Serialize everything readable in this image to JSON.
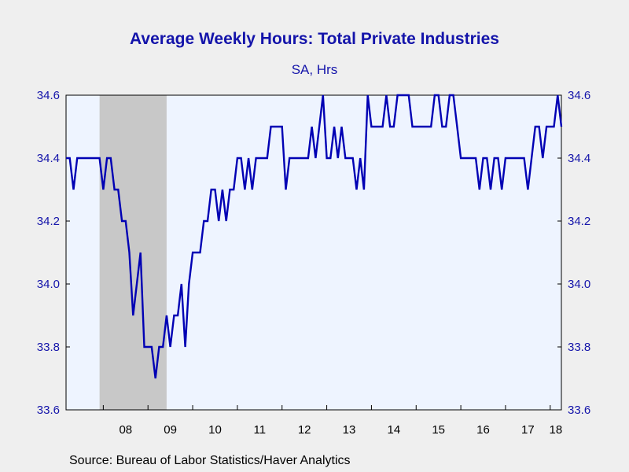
{
  "chart_data": {
    "type": "line",
    "title": "Average Weekly Hours: Total Private Industries",
    "subtitle": "SA, Hrs",
    "source": "Source:  Bureau of Labor Statistics/Haver Analytics",
    "ylim": [
      33.6,
      34.6
    ],
    "y_ticks": [
      "33.6",
      "33.8",
      "34.0",
      "34.2",
      "34.4",
      "34.6"
    ],
    "x_range": [
      "2007-03",
      "2018-04"
    ],
    "x_tick_labels": [
      "08",
      "09",
      "10",
      "11",
      "12",
      "13",
      "14",
      "15",
      "16",
      "17",
      "18"
    ],
    "recession_shading": [
      "2007-12",
      "2009-06"
    ],
    "grid": false,
    "colors": {
      "line": "#0000b4",
      "plot_bg": "#eef4ff",
      "recession": "#c8c8c8",
      "axis_text": "#1414aa"
    },
    "series": [
      {
        "values": [
          {
            "x": "2007-03",
            "y": 34.4
          },
          {
            "x": "2007-04",
            "y": 34.4
          },
          {
            "x": "2007-05",
            "y": 34.3
          },
          {
            "x": "2007-06",
            "y": 34.4
          },
          {
            "x": "2007-07",
            "y": 34.4
          },
          {
            "x": "2007-08",
            "y": 34.4
          },
          {
            "x": "2007-09",
            "y": 34.4
          },
          {
            "x": "2007-10",
            "y": 34.4
          },
          {
            "x": "2007-11",
            "y": 34.4
          },
          {
            "x": "2007-12",
            "y": 34.4
          },
          {
            "x": "2008-01",
            "y": 34.3
          },
          {
            "x": "2008-02",
            "y": 34.4
          },
          {
            "x": "2008-03",
            "y": 34.4
          },
          {
            "x": "2008-04",
            "y": 34.3
          },
          {
            "x": "2008-05",
            "y": 34.3
          },
          {
            "x": "2008-06",
            "y": 34.2
          },
          {
            "x": "2008-07",
            "y": 34.2
          },
          {
            "x": "2008-08",
            "y": 34.1
          },
          {
            "x": "2008-09",
            "y": 33.9
          },
          {
            "x": "2008-10",
            "y": 34.0
          },
          {
            "x": "2008-11",
            "y": 34.1
          },
          {
            "x": "2008-12",
            "y": 33.8
          },
          {
            "x": "2009-01",
            "y": 33.8
          },
          {
            "x": "2009-02",
            "y": 33.8
          },
          {
            "x": "2009-03",
            "y": 33.7
          },
          {
            "x": "2009-04",
            "y": 33.8
          },
          {
            "x": "2009-05",
            "y": 33.8
          },
          {
            "x": "2009-06",
            "y": 33.9
          },
          {
            "x": "2009-07",
            "y": 33.8
          },
          {
            "x": "2009-08",
            "y": 33.9
          },
          {
            "x": "2009-09",
            "y": 33.9
          },
          {
            "x": "2009-10",
            "y": 34.0
          },
          {
            "x": "2009-11",
            "y": 33.8
          },
          {
            "x": "2009-12",
            "y": 34.0
          },
          {
            "x": "2010-01",
            "y": 34.1
          },
          {
            "x": "2010-02",
            "y": 34.1
          },
          {
            "x": "2010-03",
            "y": 34.1
          },
          {
            "x": "2010-04",
            "y": 34.2
          },
          {
            "x": "2010-05",
            "y": 34.2
          },
          {
            "x": "2010-06",
            "y": 34.3
          },
          {
            "x": "2010-07",
            "y": 34.3
          },
          {
            "x": "2010-08",
            "y": 34.2
          },
          {
            "x": "2010-09",
            "y": 34.3
          },
          {
            "x": "2010-10",
            "y": 34.2
          },
          {
            "x": "2010-11",
            "y": 34.3
          },
          {
            "x": "2010-12",
            "y": 34.3
          },
          {
            "x": "2011-01",
            "y": 34.4
          },
          {
            "x": "2011-02",
            "y": 34.4
          },
          {
            "x": "2011-03",
            "y": 34.3
          },
          {
            "x": "2011-04",
            "y": 34.4
          },
          {
            "x": "2011-05",
            "y": 34.3
          },
          {
            "x": "2011-06",
            "y": 34.4
          },
          {
            "x": "2011-07",
            "y": 34.4
          },
          {
            "x": "2011-08",
            "y": 34.4
          },
          {
            "x": "2011-09",
            "y": 34.4
          },
          {
            "x": "2011-10",
            "y": 34.5
          },
          {
            "x": "2011-11",
            "y": 34.5
          },
          {
            "x": "2011-12",
            "y": 34.5
          },
          {
            "x": "2012-01",
            "y": 34.5
          },
          {
            "x": "2012-02",
            "y": 34.3
          },
          {
            "x": "2012-03",
            "y": 34.4
          },
          {
            "x": "2012-04",
            "y": 34.4
          },
          {
            "x": "2012-05",
            "y": 34.4
          },
          {
            "x": "2012-06",
            "y": 34.4
          },
          {
            "x": "2012-07",
            "y": 34.4
          },
          {
            "x": "2012-08",
            "y": 34.4
          },
          {
            "x": "2012-09",
            "y": 34.5
          },
          {
            "x": "2012-10",
            "y": 34.4
          },
          {
            "x": "2012-11",
            "y": 34.5
          },
          {
            "x": "2012-12",
            "y": 34.6
          },
          {
            "x": "2013-01",
            "y": 34.4
          },
          {
            "x": "2013-02",
            "y": 34.4
          },
          {
            "x": "2013-03",
            "y": 34.5
          },
          {
            "x": "2013-04",
            "y": 34.4
          },
          {
            "x": "2013-05",
            "y": 34.5
          },
          {
            "x": "2013-06",
            "y": 34.4
          },
          {
            "x": "2013-07",
            "y": 34.4
          },
          {
            "x": "2013-08",
            "y": 34.4
          },
          {
            "x": "2013-09",
            "y": 34.3
          },
          {
            "x": "2013-10",
            "y": 34.4
          },
          {
            "x": "2013-11",
            "y": 34.3
          },
          {
            "x": "2013-12",
            "y": 34.6
          },
          {
            "x": "2014-01",
            "y": 34.5
          },
          {
            "x": "2014-02",
            "y": 34.5
          },
          {
            "x": "2014-03",
            "y": 34.5
          },
          {
            "x": "2014-04",
            "y": 34.5
          },
          {
            "x": "2014-05",
            "y": 34.6
          },
          {
            "x": "2014-06",
            "y": 34.5
          },
          {
            "x": "2014-07",
            "y": 34.5
          },
          {
            "x": "2014-08",
            "y": 34.6
          },
          {
            "x": "2014-09",
            "y": 34.6
          },
          {
            "x": "2014-10",
            "y": 34.6
          },
          {
            "x": "2014-11",
            "y": 34.6
          },
          {
            "x": "2014-12",
            "y": 34.5
          },
          {
            "x": "2015-01",
            "y": 34.5
          },
          {
            "x": "2015-02",
            "y": 34.5
          },
          {
            "x": "2015-03",
            "y": 34.5
          },
          {
            "x": "2015-04",
            "y": 34.5
          },
          {
            "x": "2015-05",
            "y": 34.5
          },
          {
            "x": "2015-06",
            "y": 34.6
          },
          {
            "x": "2015-07",
            "y": 34.6
          },
          {
            "x": "2015-08",
            "y": 34.5
          },
          {
            "x": "2015-09",
            "y": 34.5
          },
          {
            "x": "2015-10",
            "y": 34.6
          },
          {
            "x": "2015-11",
            "y": 34.6
          },
          {
            "x": "2015-12",
            "y": 34.5
          },
          {
            "x": "2016-01",
            "y": 34.4
          },
          {
            "x": "2016-02",
            "y": 34.4
          },
          {
            "x": "2016-03",
            "y": 34.4
          },
          {
            "x": "2016-04",
            "y": 34.4
          },
          {
            "x": "2016-05",
            "y": 34.4
          },
          {
            "x": "2016-06",
            "y": 34.3
          },
          {
            "x": "2016-07",
            "y": 34.4
          },
          {
            "x": "2016-08",
            "y": 34.4
          },
          {
            "x": "2016-09",
            "y": 34.3
          },
          {
            "x": "2016-10",
            "y": 34.4
          },
          {
            "x": "2016-11",
            "y": 34.4
          },
          {
            "x": "2016-12",
            "y": 34.3
          },
          {
            "x": "2017-01",
            "y": 34.4
          },
          {
            "x": "2017-02",
            "y": 34.4
          },
          {
            "x": "2017-03",
            "y": 34.4
          },
          {
            "x": "2017-04",
            "y": 34.4
          },
          {
            "x": "2017-05",
            "y": 34.4
          },
          {
            "x": "2017-06",
            "y": 34.4
          },
          {
            "x": "2017-07",
            "y": 34.3
          },
          {
            "x": "2017-08",
            "y": 34.4
          },
          {
            "x": "2017-09",
            "y": 34.5
          },
          {
            "x": "2017-10",
            "y": 34.5
          },
          {
            "x": "2017-11",
            "y": 34.4
          },
          {
            "x": "2017-12",
            "y": 34.5
          },
          {
            "x": "2018-01",
            "y": 34.5
          },
          {
            "x": "2018-02",
            "y": 34.5
          },
          {
            "x": "2018-03",
            "y": 34.6
          },
          {
            "x": "2018-04",
            "y": 34.5
          }
        ]
      }
    ]
  }
}
